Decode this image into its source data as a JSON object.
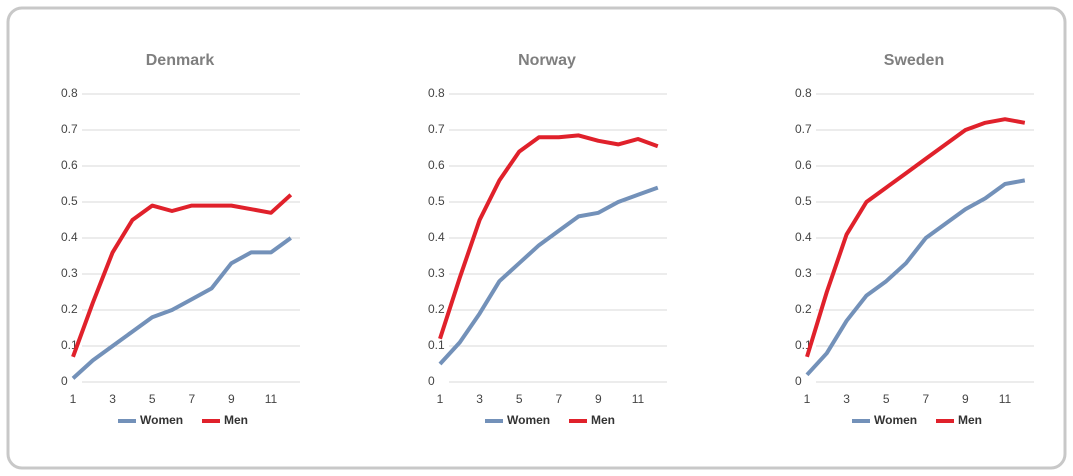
{
  "chart_data": [
    {
      "type": "line",
      "title": "Denmark",
      "x": [
        1,
        2,
        3,
        4,
        5,
        6,
        7,
        8,
        9,
        10,
        11,
        12
      ],
      "series": [
        {
          "name": "Women",
          "color": "#7391b9",
          "values": [
            0.01,
            0.06,
            0.1,
            0.14,
            0.18,
            0.2,
            0.23,
            0.26,
            0.33,
            0.36,
            0.36,
            0.4
          ]
        },
        {
          "name": "Men",
          "color": "#e0212b",
          "values": [
            0.07,
            0.22,
            0.36,
            0.45,
            0.49,
            0.475,
            0.49,
            0.49,
            0.49,
            0.48,
            0.47,
            0.52
          ]
        }
      ],
      "xlim": [
        1,
        12
      ],
      "xticks": [
        1,
        3,
        5,
        7,
        9,
        11
      ],
      "ylim": [
        0,
        0.8
      ],
      "yticks": [
        0,
        0.1,
        0.2,
        0.3,
        0.4,
        0.5,
        0.6,
        0.7,
        0.8
      ],
      "grid": true
    },
    {
      "type": "line",
      "title": "Norway",
      "x": [
        1,
        2,
        3,
        4,
        5,
        6,
        7,
        8,
        9,
        10,
        11,
        12
      ],
      "series": [
        {
          "name": "Women",
          "color": "#7391b9",
          "values": [
            0.05,
            0.11,
            0.19,
            0.28,
            0.33,
            0.38,
            0.42,
            0.46,
            0.47,
            0.5,
            0.52,
            0.54
          ]
        },
        {
          "name": "Men",
          "color": "#e0212b",
          "values": [
            0.12,
            0.29,
            0.45,
            0.56,
            0.64,
            0.68,
            0.68,
            0.685,
            0.67,
            0.66,
            0.675,
            0.655
          ]
        }
      ],
      "xlim": [
        1,
        12
      ],
      "xticks": [
        1,
        3,
        5,
        7,
        9,
        11
      ],
      "ylim": [
        0,
        0.8
      ],
      "yticks": [
        0,
        0.1,
        0.2,
        0.3,
        0.4,
        0.5,
        0.6,
        0.7,
        0.8
      ],
      "grid": true
    },
    {
      "type": "line",
      "title": "Sweden",
      "x": [
        1,
        2,
        3,
        4,
        5,
        6,
        7,
        8,
        9,
        10,
        11,
        12
      ],
      "series": [
        {
          "name": "Women",
          "color": "#7391b9",
          "values": [
            0.02,
            0.08,
            0.17,
            0.24,
            0.28,
            0.33,
            0.4,
            0.44,
            0.48,
            0.51,
            0.55,
            0.56
          ]
        },
        {
          "name": "Men",
          "color": "#e0212b",
          "values": [
            0.07,
            0.25,
            0.41,
            0.5,
            0.54,
            0.58,
            0.62,
            0.66,
            0.7,
            0.72,
            0.73,
            0.72
          ]
        }
      ],
      "xlim": [
        1,
        12
      ],
      "xticks": [
        1,
        3,
        5,
        7,
        9,
        11
      ],
      "ylim": [
        0,
        0.8
      ],
      "yticks": [
        0,
        0.1,
        0.2,
        0.3,
        0.4,
        0.5,
        0.6,
        0.7,
        0.8
      ],
      "grid": true
    }
  ]
}
